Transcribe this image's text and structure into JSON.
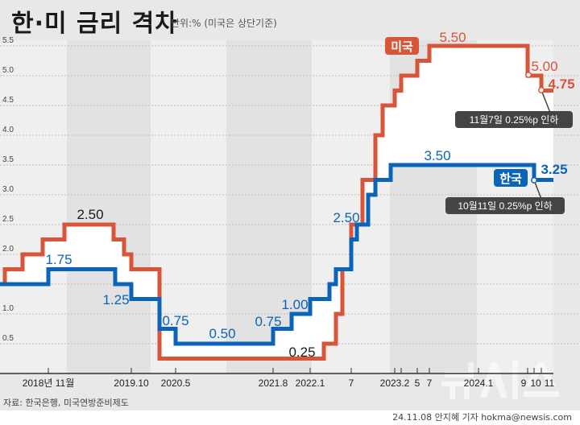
{
  "header": {
    "title": "한·미 금리 격차",
    "unit": "단위:% (미국은 상단기준)"
  },
  "footer": {
    "source": "자료: 한국은행, 미국연방준비제도",
    "credit": "24.11.08 안지혜 기자 hokma@newsis.com",
    "logo": "뉴시스"
  },
  "colors": {
    "us": "#d8553a",
    "korea": "#0b64b8",
    "background": "#e8e8e8",
    "callout": "#444444"
  },
  "chart_data": {
    "type": "line",
    "step": true,
    "title": "한·미 금리 격차",
    "ylim": [
      0,
      5.5
    ],
    "y_ticks": [
      "0.5",
      "1.0",
      "1.5",
      "2.0",
      "2.5",
      "3.0",
      "3.5",
      "4.0",
      "4.5",
      "5.0",
      "5.5"
    ],
    "grid": true,
    "x_ticks": [
      {
        "date": "2018.11",
        "label": "2018년 11월"
      },
      {
        "date": "2019.10",
        "label": "2019.10"
      },
      {
        "date": "2020.05",
        "label": "2020.5"
      },
      {
        "date": "2021.08",
        "label": "2021.8"
      },
      {
        "date": "2022.01",
        "label": "2022.1"
      },
      {
        "date": "2022.07",
        "label": "7"
      },
      {
        "date": "2023.02",
        "label": "2023.2"
      },
      {
        "date": "2023.03",
        "label": ""
      },
      {
        "date": "2023.05",
        "label": "5"
      },
      {
        "date": "2023.07",
        "label": "7"
      },
      {
        "date": "2024.01",
        "label": "2024.1"
      },
      {
        "date": "2024.09",
        "label": "9"
      },
      {
        "date": "2024.10",
        "label": "10"
      },
      {
        "date": "2024.11",
        "label": "11"
      }
    ],
    "series": [
      {
        "name": "미국",
        "color": "#d8553a",
        "points": [
          [
            "2018.01",
            1.5
          ],
          [
            "2018.03",
            1.75
          ],
          [
            "2018.06",
            2.0
          ],
          [
            "2018.09",
            2.25
          ],
          [
            "2018.12",
            2.5
          ],
          [
            "2019.07",
            2.25
          ],
          [
            "2019.09",
            2.0
          ],
          [
            "2019.10",
            1.75
          ],
          [
            "2020.03",
            0.25
          ],
          [
            "2022.03",
            0.5
          ],
          [
            "2022.05",
            1.0
          ],
          [
            "2022.06",
            1.75
          ],
          [
            "2022.07",
            2.5
          ],
          [
            "2022.09",
            3.25
          ],
          [
            "2022.11",
            4.0
          ],
          [
            "2022.12",
            4.5
          ],
          [
            "2023.02",
            4.75
          ],
          [
            "2023.03",
            5.0
          ],
          [
            "2023.05",
            5.25
          ],
          [
            "2023.07",
            5.5
          ],
          [
            "2024.09",
            5.0
          ],
          [
            "2024.11",
            4.75
          ]
        ]
      },
      {
        "name": "한국",
        "color": "#0b64b8",
        "points": [
          [
            "2018.01",
            1.5
          ],
          [
            "2018.11",
            1.75
          ],
          [
            "2019.08",
            1.5
          ],
          [
            "2019.10",
            1.25
          ],
          [
            "2020.03",
            0.75
          ],
          [
            "2020.05",
            0.5
          ],
          [
            "2021.08",
            0.75
          ],
          [
            "2021.11",
            1.0
          ],
          [
            "2022.01",
            1.25
          ],
          [
            "2022.04",
            1.5
          ],
          [
            "2022.05",
            1.75
          ],
          [
            "2022.07",
            2.25
          ],
          [
            "2022.08",
            2.5
          ],
          [
            "2022.10",
            3.0
          ],
          [
            "2022.11",
            3.25
          ],
          [
            "2023.01",
            3.5
          ],
          [
            "2024.10",
            3.25
          ]
        ]
      }
    ],
    "data_labels": [
      {
        "text": "2.50",
        "series": "미국",
        "color": "#1a1a1a"
      },
      {
        "text": "1.75",
        "series": "한국",
        "color": "#0b64b8"
      },
      {
        "text": "1.25",
        "series": "한국",
        "color": "#0b64b8"
      },
      {
        "text": "0.75",
        "series": "한국",
        "color": "#0b64b8"
      },
      {
        "text": "0.50",
        "series": "한국",
        "color": "#0b64b8"
      },
      {
        "text": "0.75",
        "series": "한국",
        "color": "#0b64b8"
      },
      {
        "text": "1.00",
        "series": "한국",
        "color": "#0b64b8"
      },
      {
        "text": "0.25",
        "series": "미국",
        "color": "#1a1a1a"
      },
      {
        "text": "2.50",
        "series": "한국",
        "color": "#0b64b8"
      },
      {
        "text": "3.50",
        "series": "한국",
        "color": "#0b64b8"
      },
      {
        "text": "5.50",
        "series": "미국",
        "color": "#d8553a"
      },
      {
        "text": "5.00",
        "series": "미국",
        "color": "#d8553a"
      },
      {
        "text": "4.75",
        "series": "미국",
        "color": "#d8553a"
      },
      {
        "text": "3.25",
        "series": "한국",
        "color": "#0b64b8"
      }
    ],
    "annotations": [
      {
        "text": "11월7일 0.25%p 인하",
        "series": "미국"
      },
      {
        "text": "10월11일 0.25%p 인하",
        "series": "한국"
      }
    ],
    "legend": [
      {
        "label": "미국",
        "color": "#d8553a"
      },
      {
        "label": "한국",
        "color": "#0b64b8"
      }
    ]
  }
}
